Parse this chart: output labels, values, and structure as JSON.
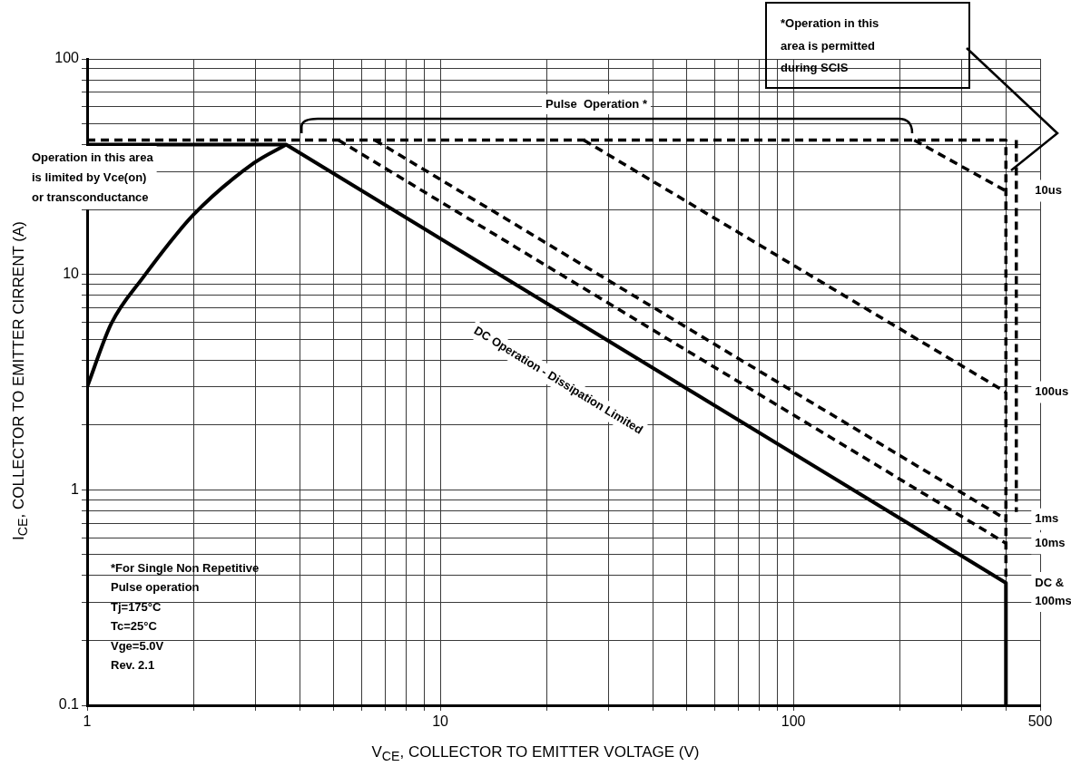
{
  "chart_data": {
    "type": "line",
    "log": "xy",
    "xlabel": "V$_{CE}$, COLLECTOR TO EMITTER VOLTAGE (V)",
    "ylabel": "I$_{CE}$, COLLECTOR TO EMITTER CIRRENT (A)",
    "xlim": [
      1,
      500
    ],
    "ylim": [
      0.1,
      100
    ],
    "xticks": [
      1,
      {
        "value": 2,
        "label": null
      },
      {
        "value": 3,
        "label": null
      },
      {
        "value": 4,
        "label": null
      },
      {
        "value": 5,
        "label": null
      },
      {
        "value": 6,
        "label": null
      },
      {
        "value": 7,
        "label": null
      },
      {
        "value": 8,
        "label": null
      },
      {
        "value": 9,
        "label": null
      },
      10,
      {
        "value": 20,
        "label": null
      },
      {
        "value": 30,
        "label": null
      },
      {
        "value": 40,
        "label": null
      },
      {
        "value": 50,
        "label": null
      },
      {
        "value": 60,
        "label": null
      },
      {
        "value": 70,
        "label": null
      },
      {
        "value": 80,
        "label": null
      },
      {
        "value": 90,
        "label": null
      },
      100,
      {
        "value": 200,
        "label": null
      },
      {
        "value": 300,
        "label": null
      },
      {
        "value": 400,
        "label": null
      },
      500
    ],
    "yticks": [
      0.1,
      {
        "value": 0.2,
        "label": null
      },
      {
        "value": 0.3,
        "label": null
      },
      {
        "value": 0.4,
        "label": null
      },
      {
        "value": 0.5,
        "label": null
      },
      {
        "value": 0.6,
        "label": null
      },
      {
        "value": 0.7,
        "label": null
      },
      {
        "value": 0.8,
        "label": null
      },
      {
        "value": 0.9,
        "label": null
      },
      1,
      {
        "value": 2,
        "label": null
      },
      {
        "value": 3,
        "label": null
      },
      {
        "value": 4,
        "label": null
      },
      {
        "value": 5,
        "label": null
      },
      {
        "value": 6,
        "label": null
      },
      {
        "value": 7,
        "label": null
      },
      {
        "value": 8,
        "label": null
      },
      {
        "value": 9,
        "label": null
      },
      10,
      {
        "value": 20,
        "label": null
      },
      {
        "value": 30,
        "label": null
      },
      {
        "value": 40,
        "label": null
      },
      {
        "value": 50,
        "label": null
      },
      {
        "value": 60,
        "label": null
      },
      {
        "value": 70,
        "label": null
      },
      {
        "value": 80,
        "label": null
      },
      {
        "value": 90,
        "label": null
      },
      100
    ],
    "grid": true,
    "legend": false,
    "marker": "none",
    "series": [
      {
        "color": "#000000",
        "line_style": "solid",
        "x": [
          1,
          1.17,
          1.435,
          2,
          2.97,
          3.66
        ],
        "values": [
          3,
          5.9,
          9.6,
          18.9,
          32.9,
          40
        ]
      },
      {
        "name": "DC & 100ms",
        "color": "#000000",
        "line_style": "solid",
        "x": [
          1,
          3.66,
          400,
          400
        ],
        "values": [
          40,
          40,
          0.37,
          0.1
        ]
      },
      {
        "color": "#000000",
        "line_style": "dashed",
        "x": [
          1,
          400,
          400
        ],
        "values": [
          42,
          42,
          0.37
        ]
      },
      {
        "name": "10us",
        "color": "#000000",
        "line_style": "dashed",
        "x": [
          220,
          400
        ],
        "values": [
          42,
          24.4
        ]
      },
      {
        "name": "100us",
        "color": "#000000",
        "line_style": "dashed",
        "x": [
          25.5,
          400
        ],
        "values": [
          42,
          2.84
        ]
      },
      {
        "name": "1ms",
        "color": "#000000",
        "line_style": "dashed",
        "x": [
          6.53,
          400
        ],
        "values": [
          42,
          0.73
        ]
      },
      {
        "name": "10ms",
        "color": "#000000",
        "line_style": "dashed",
        "x": [
          5.15,
          400
        ],
        "values": [
          42,
          0.565
        ]
      },
      {
        "color": "#000000",
        "line_style": "dashed",
        "x": [
          428,
          428
        ],
        "values": [
          42,
          0.79
        ]
      }
    ],
    "annotations": [
      "Pulse  Operation *",
      "DC Operation - Dissipation Limited",
      "Operation in this area\nis limited by Vce(on)\nor transconductance",
      "*For Single Non Repetitive\nPulse operation\nTj=175°C\nTc=25°C\nVge=5.0V\nRev. 2.1",
      "*Operation in this\narea is permitted\nduring SCIS"
    ]
  }
}
